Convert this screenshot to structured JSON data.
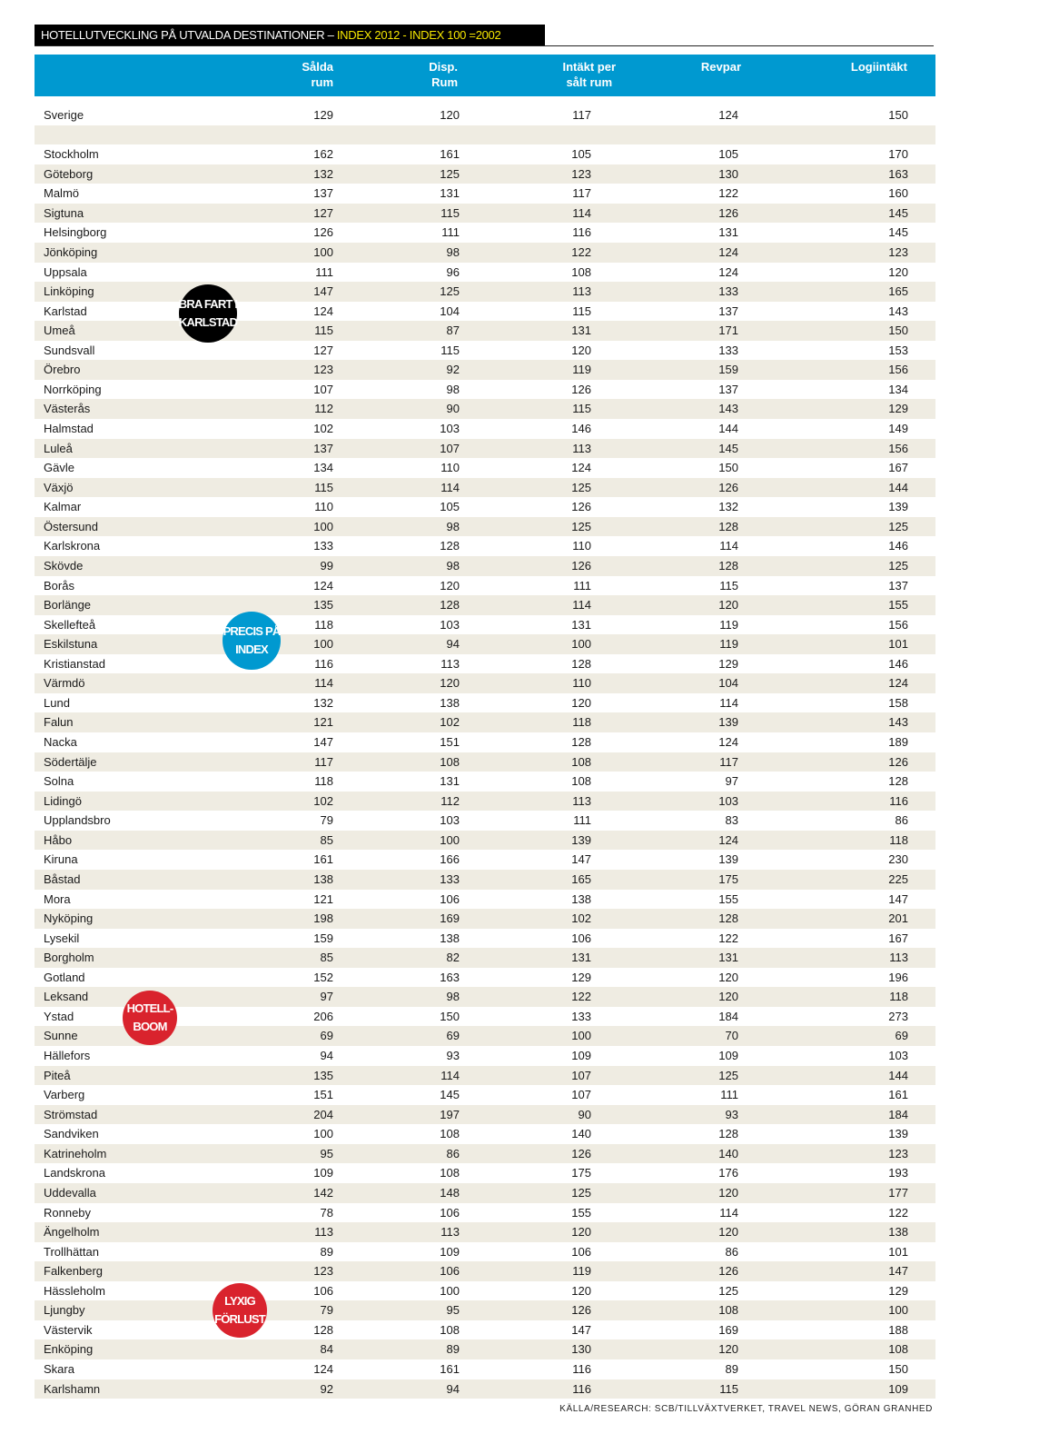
{
  "title": {
    "main": "HOTELLUTVECKLING PÅ UTVALDA DESTINATIONER – ",
    "highlight": "INDEX 2012  - INDEX 100 =2002"
  },
  "colors": {
    "header": "#0099d0",
    "stripe": "#efece2",
    "highlight": "#f5e600",
    "badge_black": "#000000",
    "badge_blue": "#0099d0",
    "badge_red": "#d9232d"
  },
  "columns": [
    "Sålda\nrum",
    "Disp.\nRum",
    "Intäkt per\nsålt rum",
    "Revpar",
    "Logiintäkt"
  ],
  "rows": [
    [
      "Sverige",
      129,
      120,
      117,
      124,
      150
    ],
    [
      "",
      "",
      "",
      "",
      "",
      ""
    ],
    [
      "Stockholm",
      162,
      161,
      105,
      105,
      170
    ],
    [
      "Göteborg",
      132,
      125,
      123,
      130,
      163
    ],
    [
      "Malmö",
      137,
      131,
      117,
      122,
      160
    ],
    [
      "Sigtuna",
      127,
      115,
      114,
      126,
      145
    ],
    [
      "Helsingborg",
      126,
      111,
      116,
      131,
      145
    ],
    [
      "Jönköping",
      100,
      98,
      122,
      124,
      123
    ],
    [
      "Uppsala",
      111,
      96,
      108,
      124,
      120
    ],
    [
      "Linköping",
      147,
      125,
      113,
      133,
      165
    ],
    [
      "Karlstad",
      124,
      104,
      115,
      137,
      143
    ],
    [
      "Umeå",
      115,
      87,
      131,
      171,
      150
    ],
    [
      "Sundsvall",
      127,
      115,
      120,
      133,
      153
    ],
    [
      "Örebro",
      123,
      92,
      119,
      159,
      156
    ],
    [
      "Norrköping",
      107,
      98,
      126,
      137,
      134
    ],
    [
      "Västerås",
      112,
      90,
      115,
      143,
      129
    ],
    [
      "Halmstad",
      102,
      103,
      146,
      144,
      149
    ],
    [
      "Luleå",
      137,
      107,
      113,
      145,
      156
    ],
    [
      "Gävle",
      134,
      110,
      124,
      150,
      167
    ],
    [
      "Växjö",
      115,
      114,
      125,
      126,
      144
    ],
    [
      "Kalmar",
      110,
      105,
      126,
      132,
      139
    ],
    [
      "Östersund",
      100,
      98,
      125,
      128,
      125
    ],
    [
      "Karlskrona",
      133,
      128,
      110,
      114,
      146
    ],
    [
      "Skövde",
      99,
      98,
      126,
      128,
      125
    ],
    [
      "Borås",
      124,
      120,
      111,
      115,
      137
    ],
    [
      "Borlänge",
      135,
      128,
      114,
      120,
      155
    ],
    [
      "Skellefteå",
      118,
      103,
      131,
      119,
      156
    ],
    [
      "Eskilstuna",
      100,
      94,
      100,
      119,
      101
    ],
    [
      "Kristianstad",
      116,
      113,
      128,
      129,
      146
    ],
    [
      "Värmdö",
      114,
      120,
      110,
      104,
      124
    ],
    [
      "Lund",
      132,
      138,
      120,
      114,
      158
    ],
    [
      "Falun",
      121,
      102,
      118,
      139,
      143
    ],
    [
      "Nacka",
      147,
      151,
      128,
      124,
      189
    ],
    [
      "Södertälje",
      117,
      108,
      108,
      117,
      126
    ],
    [
      "Solna",
      118,
      131,
      108,
      97,
      128
    ],
    [
      "Lidingö",
      102,
      112,
      113,
      103,
      116
    ],
    [
      "Upplandsbro",
      79,
      103,
      111,
      83,
      86
    ],
    [
      "Håbo",
      85,
      100,
      139,
      124,
      118
    ],
    [
      "Kiruna",
      161,
      166,
      147,
      139,
      230
    ],
    [
      "Båstad",
      138,
      133,
      165,
      175,
      225
    ],
    [
      "Mora",
      121,
      106,
      138,
      155,
      147
    ],
    [
      "Nyköping",
      198,
      169,
      102,
      128,
      201
    ],
    [
      "Lysekil",
      159,
      138,
      106,
      122,
      167
    ],
    [
      "Borgholm",
      85,
      82,
      131,
      131,
      113
    ],
    [
      "Gotland",
      152,
      163,
      129,
      120,
      196
    ],
    [
      "Leksand",
      97,
      98,
      122,
      120,
      118
    ],
    [
      "Ystad",
      206,
      150,
      133,
      184,
      273
    ],
    [
      "Sunne",
      69,
      69,
      100,
      70,
      69
    ],
    [
      "Hällefors",
      94,
      93,
      109,
      109,
      103
    ],
    [
      "Piteå",
      135,
      114,
      107,
      125,
      144
    ],
    [
      "Varberg",
      151,
      145,
      107,
      111,
      161
    ],
    [
      "Strömstad",
      204,
      197,
      90,
      93,
      184
    ],
    [
      "Sandviken",
      100,
      108,
      140,
      128,
      139
    ],
    [
      "Katrineholm",
      95,
      86,
      126,
      140,
      123
    ],
    [
      "Landskrona",
      109,
      108,
      175,
      176,
      193
    ],
    [
      "Uddevalla",
      142,
      148,
      125,
      120,
      177
    ],
    [
      "Ronneby",
      78,
      106,
      155,
      114,
      122
    ],
    [
      "Ängelholm",
      113,
      113,
      120,
      120,
      138
    ],
    [
      "Trollhättan",
      89,
      109,
      106,
      86,
      101
    ],
    [
      "Falkenberg",
      123,
      106,
      119,
      126,
      147
    ],
    [
      "Hässleholm",
      106,
      100,
      120,
      125,
      129
    ],
    [
      "Ljungby",
      79,
      95,
      126,
      108,
      100
    ],
    [
      "Västervik",
      128,
      108,
      147,
      169,
      188
    ],
    [
      "Enköping",
      84,
      89,
      130,
      120,
      108
    ],
    [
      "Skara",
      124,
      161,
      116,
      89,
      150
    ],
    [
      "Karlshamn",
      92,
      94,
      116,
      115,
      109
    ]
  ],
  "badges": [
    {
      "text": "BRA FART I\nKARLSTAD",
      "color": "#000000"
    },
    {
      "text": "PRECIS PÅ\nINDEX",
      "color": "#0099d0"
    },
    {
      "text": "HOTELL-\nBOOM",
      "color": "#d9232d"
    },
    {
      "text": "LYXIG\nFÖRLUST",
      "color": "#d9232d"
    }
  ],
  "source": "KÄLLA/RESEARCH: SCB/TILLVÄXTVERKET, TRAVEL NEWS, GÖRAN GRANHED"
}
